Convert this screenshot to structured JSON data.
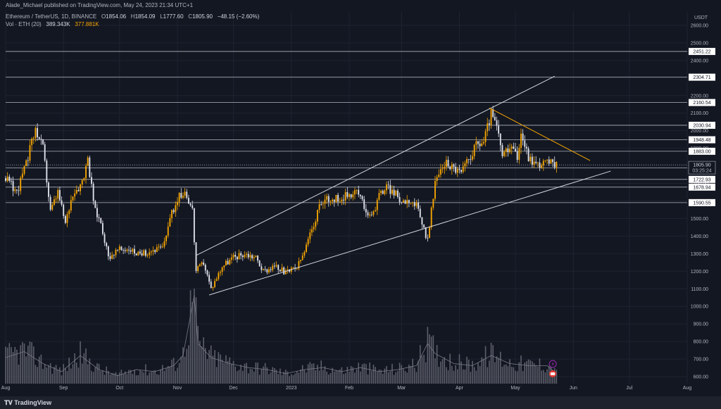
{
  "header": {
    "published": "Alade_Michael published on TradingView.com, May 24, 2023 21:34 UTC+1"
  },
  "legend": {
    "symbol": "Ethereum / TetherUS, 1D, BINANCE",
    "ohlc": [
      {
        "k": "O",
        "v": "1854.06"
      },
      {
        "k": "H",
        "v": "1854.09"
      },
      {
        "k": "L",
        "v": "1777.60"
      },
      {
        "k": "C",
        "v": "1805.90"
      },
      {
        "k": "",
        "v": "−48.15 (−2.60%)"
      }
    ],
    "volume_label": "Vol · ETH (20)",
    "volume_value": "389.343K",
    "volume_ma": "377.881K"
  },
  "footer": {
    "brand": "TradingView"
  },
  "chart_data": {
    "type": "candlestick",
    "currency": "USDT",
    "y_ticks": [
      600,
      700,
      800,
      900,
      1000,
      1100,
      1200,
      1300,
      1400,
      1500,
      1600,
      1700,
      1800,
      1900,
      2000,
      2100,
      2200,
      2300,
      2400,
      2500,
      2600
    ],
    "ylim": [
      560,
      2680
    ],
    "x_ticks": [
      "Aug",
      "Sep",
      "Oct",
      "Nov",
      "Dec",
      "2023",
      "Feb",
      "Mar",
      "Apr",
      "May",
      "Jun",
      "Jul",
      "Aug"
    ],
    "x_tick_days": [
      0,
      31,
      61,
      92,
      122,
      153,
      184,
      212,
      243,
      273,
      304,
      334,
      365
    ],
    "price_levels": [
      {
        "label": "2451.22",
        "value": 2451.22
      },
      {
        "label": "2304.71",
        "value": 2304.71
      },
      {
        "label": "2160.54",
        "value": 2160.54
      },
      {
        "label": "2030.94",
        "value": 2030.94
      },
      {
        "label": "1948.48",
        "value": 1948.48
      },
      {
        "label": "1883.00",
        "value": 1883.0
      },
      {
        "label": "1788.41",
        "value": 1788.41
      },
      {
        "label": "1722.93",
        "value": 1722.93
      },
      {
        "label": "1678.94",
        "value": 1678.94
      },
      {
        "label": "1590.55",
        "value": 1590.55
      }
    ],
    "current_price": {
      "label": "1805.90",
      "value": 1805.9,
      "countdown": "03:25:24"
    },
    "trendlines": [
      {
        "name": "channel-upper",
        "from": [
          102,
          1290
        ],
        "to": [
          294,
          2310
        ],
        "color": "#d1d4dc"
      },
      {
        "name": "channel-lower",
        "from": [
          109,
          1065
        ],
        "to": [
          324,
          1770
        ],
        "color": "#d1d4dc"
      },
      {
        "name": "descending-resistance",
        "from": [
          259,
          2130
        ],
        "to": [
          313,
          1830
        ],
        "color": "#f7a600"
      }
    ],
    "price_anchors": [
      [
        0,
        1730
      ],
      [
        6,
        1650
      ],
      [
        11,
        1810
      ],
      [
        16,
        2010
      ],
      [
        20,
        1900
      ],
      [
        24,
        1540
      ],
      [
        28,
        1650
      ],
      [
        32,
        1470
      ],
      [
        36,
        1650
      ],
      [
        40,
        1690
      ],
      [
        44,
        1820
      ],
      [
        48,
        1540
      ],
      [
        51,
        1480
      ],
      [
        55,
        1280
      ],
      [
        60,
        1320
      ],
      [
        66,
        1330
      ],
      [
        72,
        1290
      ],
      [
        78,
        1320
      ],
      [
        84,
        1330
      ],
      [
        88,
        1500
      ],
      [
        92,
        1610
      ],
      [
        96,
        1660
      ],
      [
        100,
        1550
      ],
      [
        102,
        1200
      ],
      [
        106,
        1250
      ],
      [
        110,
        1100
      ],
      [
        116,
        1230
      ],
      [
        122,
        1280
      ],
      [
        128,
        1300
      ],
      [
        134,
        1280
      ],
      [
        138,
        1200
      ],
      [
        144,
        1230
      ],
      [
        150,
        1190
      ],
      [
        156,
        1220
      ],
      [
        160,
        1310
      ],
      [
        164,
        1440
      ],
      [
        168,
        1560
      ],
      [
        172,
        1620
      ],
      [
        176,
        1610
      ],
      [
        180,
        1620
      ],
      [
        184,
        1640
      ],
      [
        188,
        1660
      ],
      [
        192,
        1570
      ],
      [
        196,
        1500
      ],
      [
        200,
        1640
      ],
      [
        204,
        1680
      ],
      [
        208,
        1650
      ],
      [
        212,
        1600
      ],
      [
        216,
        1610
      ],
      [
        220,
        1570
      ],
      [
        224,
        1440
      ],
      [
        226,
        1380
      ],
      [
        230,
        1700
      ],
      [
        233,
        1780
      ],
      [
        236,
        1820
      ],
      [
        240,
        1790
      ],
      [
        244,
        1760
      ],
      [
        248,
        1840
      ],
      [
        252,
        1920
      ],
      [
        256,
        1940
      ],
      [
        260,
        2100
      ],
      [
        263,
        2020
      ],
      [
        266,
        1860
      ],
      [
        270,
        1890
      ],
      [
        274,
        1860
      ],
      [
        276,
        1990
      ],
      [
        280,
        1850
      ],
      [
        284,
        1810
      ],
      [
        288,
        1820
      ],
      [
        292,
        1815
      ],
      [
        295,
        1806
      ]
    ],
    "volume_anchors": [
      [
        0,
        690
      ],
      [
        10,
        720
      ],
      [
        20,
        660
      ],
      [
        30,
        620
      ],
      [
        40,
        700
      ],
      [
        50,
        630
      ],
      [
        60,
        600
      ],
      [
        70,
        630
      ],
      [
        80,
        620
      ],
      [
        90,
        650
      ],
      [
        95,
        700
      ],
      [
        101,
        1000
      ],
      [
        103,
        760
      ],
      [
        110,
        690
      ],
      [
        120,
        660
      ],
      [
        130,
        640
      ],
      [
        140,
        630
      ],
      [
        150,
        610
      ],
      [
        160,
        630
      ],
      [
        170,
        640
      ],
      [
        180,
        620
      ],
      [
        190,
        640
      ],
      [
        200,
        620
      ],
      [
        210,
        630
      ],
      [
        220,
        650
      ],
      [
        226,
        760
      ],
      [
        230,
        710
      ],
      [
        240,
        660
      ],
      [
        250,
        650
      ],
      [
        260,
        700
      ],
      [
        270,
        660
      ],
      [
        280,
        650
      ],
      [
        290,
        650
      ],
      [
        295,
        610
      ]
    ],
    "volume_ylim": [
      560,
      1010
    ]
  }
}
